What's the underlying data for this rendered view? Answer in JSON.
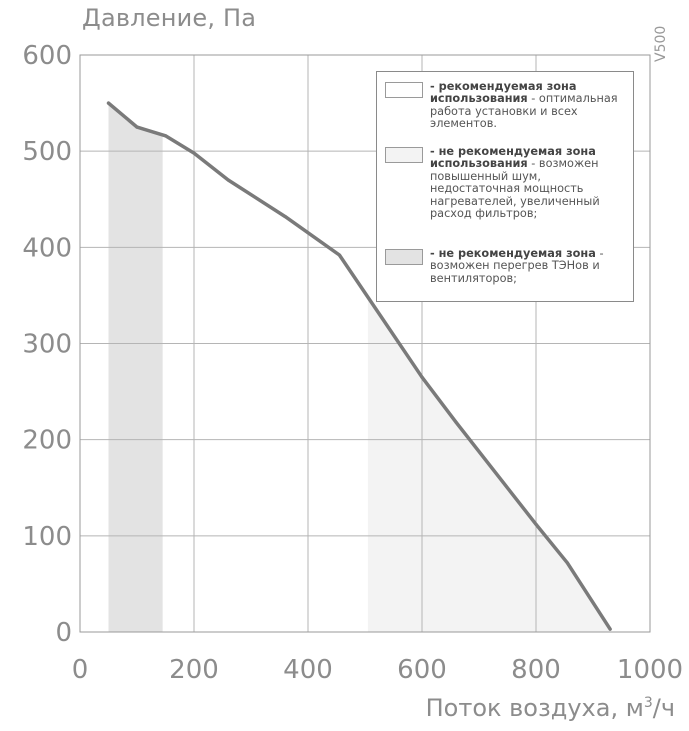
{
  "chart_data": {
    "type": "line",
    "model_label": "V500",
    "ylabel": "Давление, Па",
    "xlabel_text": "Поток воздуха, м",
    "xlabel_sup": "3",
    "xlabel_tail": "/ч",
    "xlim": [
      0,
      1000
    ],
    "ylim": [
      0,
      600
    ],
    "xticks": [
      0,
      200,
      400,
      600,
      800,
      1000
    ],
    "yticks": [
      0,
      100,
      200,
      300,
      400,
      500,
      600
    ],
    "grid": true,
    "series": [
      {
        "x": [
          50,
          100,
          150,
          200,
          260,
          360,
          455,
          600,
          660,
          800,
          855,
          930
        ],
        "y": [
          550,
          525,
          516,
          498,
          470,
          432,
          392,
          265,
          218,
          112,
          72,
          3
        ],
        "color": "#7a7a7a"
      }
    ],
    "zones": [
      {
        "type": "not-recommended",
        "x_from": 50,
        "x_to": 145,
        "color": "#e3e3e3"
      },
      {
        "type": "not-recommended-noise",
        "x_from": 505,
        "x_to": 930,
        "color": "#f3f3f3"
      }
    ],
    "legend": {
      "position": "top-right",
      "items": [
        {
          "swatch": "#ffffff",
          "bold": "- рекомендуемая зона использования",
          "text": " - оптимальная работа установки и всех элементов."
        },
        {
          "swatch": "#f3f3f3",
          "bold": "- не рекомендуемая зона использования",
          "text": " - возможен повышенный шум, недостаточная мощность нагревателей, увеличенный расход фильтров;"
        },
        {
          "swatch": "#e3e3e3",
          "bold": "- не рекомендуемая зона",
          "text": " - возможен перегрев ТЭНов и вентиляторов;"
        }
      ]
    }
  }
}
